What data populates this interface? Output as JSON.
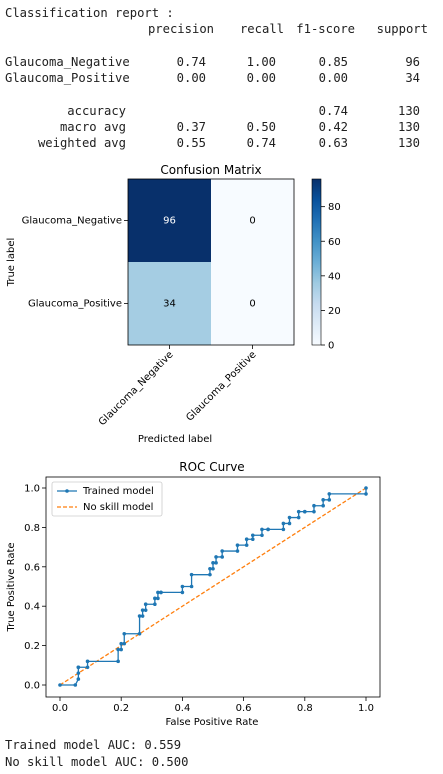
{
  "report": {
    "title": "Classification report :",
    "headers": [
      "precision",
      "recall",
      "f1-score",
      "support"
    ],
    "rows": [
      {
        "label": "Glaucoma_Negative",
        "precision": "0.74",
        "recall": "1.00",
        "f1": "0.85",
        "support": "96"
      },
      {
        "label": "Glaucoma_Positive",
        "precision": "0.00",
        "recall": "0.00",
        "f1": "0.00",
        "support": "34"
      }
    ],
    "summary": [
      {
        "label": "accuracy",
        "precision": "",
        "recall": "",
        "f1": "0.74",
        "support": "130"
      },
      {
        "label": "macro avg",
        "precision": "0.37",
        "recall": "0.50",
        "f1": "0.42",
        "support": "130"
      },
      {
        "label": "weighted avg",
        "precision": "0.55",
        "recall": "0.74",
        "f1": "0.63",
        "support": "130"
      }
    ]
  },
  "chart_data": [
    {
      "type": "heatmap",
      "title": "Confusion Matrix",
      "xlabel": "Predicted label",
      "ylabel": "True label",
      "x_categories": [
        "Glaucoma_Negative",
        "Glaucoma_Positive"
      ],
      "y_categories": [
        "Glaucoma_Negative",
        "Glaucoma_Positive"
      ],
      "values": [
        [
          96,
          0
        ],
        [
          34,
          0
        ]
      ],
      "colorbar": {
        "ticks": [
          0,
          20,
          40,
          60,
          80
        ],
        "range": [
          0,
          96
        ],
        "colormap": "Blues"
      },
      "colors": {
        "low": "#f7fbff",
        "mid": "#a8cde4",
        "high": "#08306b"
      }
    },
    {
      "type": "line",
      "title": "ROC Curve",
      "xlabel": "False Positive Rate",
      "ylabel": "True Positive Rate",
      "xlim": [
        0,
        1
      ],
      "ylim": [
        0,
        1
      ],
      "xticks": [
        "0.0",
        "0.2",
        "0.4",
        "0.6",
        "0.8",
        "1.0"
      ],
      "yticks": [
        "0.0",
        "0.2",
        "0.4",
        "0.6",
        "0.8",
        "1.0"
      ],
      "legend": "top-left",
      "series": [
        {
          "name": "Trained model",
          "color": "#1f77b4",
          "style": "solid-marker",
          "x": [
            0.0,
            0.05,
            0.06,
            0.06,
            0.06,
            0.06,
            0.09,
            0.09,
            0.19,
            0.19,
            0.2,
            0.2,
            0.21,
            0.21,
            0.26,
            0.26,
            0.27,
            0.27,
            0.28,
            0.28,
            0.31,
            0.31,
            0.32,
            0.32,
            0.33,
            0.33,
            0.4,
            0.4,
            0.43,
            0.43,
            0.49,
            0.49,
            0.5,
            0.5,
            0.51,
            0.51,
            0.53,
            0.53,
            0.58,
            0.58,
            0.61,
            0.61,
            0.63,
            0.63,
            0.66,
            0.66,
            0.68,
            0.68,
            0.73,
            0.73,
            0.75,
            0.75,
            0.78,
            0.78,
            0.8,
            0.8,
            0.83,
            0.83,
            0.86,
            0.86,
            0.88,
            0.88,
            1.0,
            1.0
          ],
          "y": [
            0.0,
            0.0,
            0.03,
            0.06,
            0.09,
            0.09,
            0.09,
            0.12,
            0.12,
            0.18,
            0.18,
            0.21,
            0.21,
            0.26,
            0.26,
            0.35,
            0.35,
            0.38,
            0.38,
            0.41,
            0.41,
            0.44,
            0.44,
            0.47,
            0.47,
            0.47,
            0.47,
            0.5,
            0.5,
            0.56,
            0.56,
            0.59,
            0.59,
            0.62,
            0.62,
            0.65,
            0.65,
            0.68,
            0.68,
            0.71,
            0.71,
            0.74,
            0.74,
            0.76,
            0.76,
            0.79,
            0.79,
            0.79,
            0.79,
            0.82,
            0.82,
            0.85,
            0.85,
            0.88,
            0.88,
            0.88,
            0.88,
            0.91,
            0.91,
            0.94,
            0.94,
            0.97,
            0.97,
            1.0
          ]
        },
        {
          "name": "No skill model",
          "color": "#ff7f0e",
          "style": "dashed",
          "x": [
            0.0,
            1.0
          ],
          "y": [
            0.0,
            1.0
          ]
        }
      ]
    }
  ],
  "auc": {
    "trained": "Trained model AUC: 0.559",
    "no_skill": "No skill model AUC: 0.500"
  }
}
